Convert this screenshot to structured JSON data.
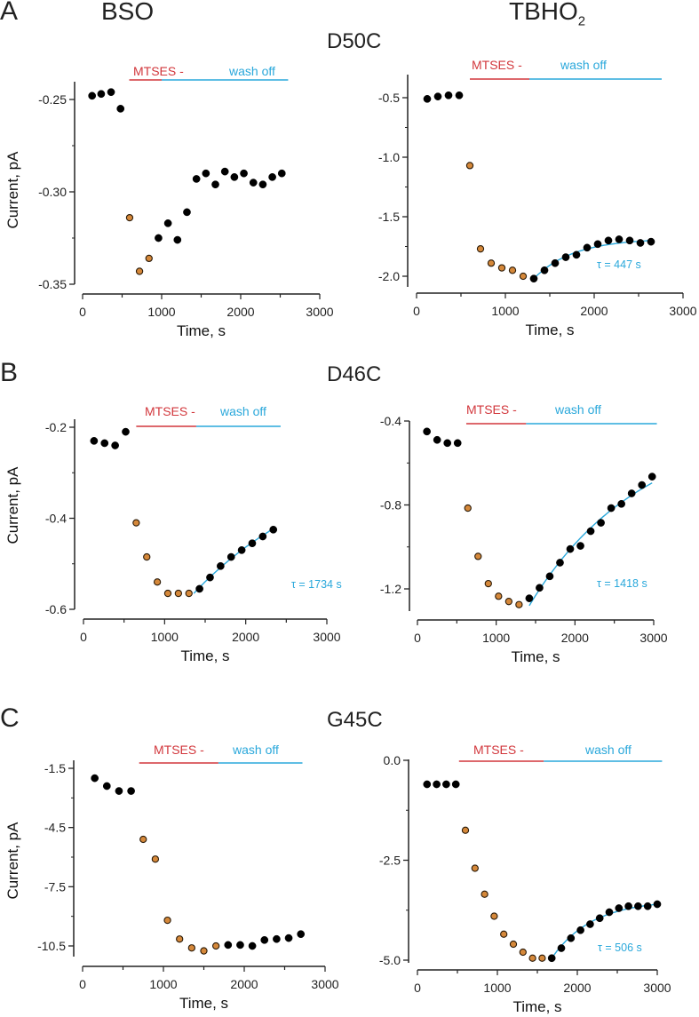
{
  "figure": {
    "column_titles": [
      {
        "main": "BSO",
        "sub": ""
      },
      {
        "main": "TBHO",
        "sub": "2"
      }
    ],
    "rows": [
      {
        "letter": "A",
        "title": "D50C"
      },
      {
        "letter": "B",
        "title": "D46C"
      },
      {
        "letter": "C",
        "title": "G45C"
      }
    ],
    "bar_labels": {
      "mtses": "MTSES -",
      "wash": "wash off"
    },
    "colors": {
      "black_point": "#000000",
      "orange_point": "#d5883a",
      "mtses_bar": "#d2373c",
      "wash_bar": "#2aa8db",
      "fit_line": "#2aa8db",
      "axis": "#222222"
    }
  },
  "chart_data": [
    {
      "type": "scatter",
      "row": "A",
      "column": "BSO",
      "construct": "D50C",
      "xlabel": "Time, s",
      "ylabel": "Current, pA",
      "xlim": [
        0,
        3000
      ],
      "ylim": [
        -0.35,
        -0.25
      ],
      "xticks": [
        0,
        1000,
        2000,
        3000
      ],
      "yticks": [
        -0.25,
        -0.3,
        -0.35
      ],
      "ytick_labels": [
        "-0.25",
        "-0.30",
        "-0.35"
      ],
      "mtses_interval": [
        590,
        1000
      ],
      "wash_interval": [
        1000,
        2600
      ],
      "series": [
        {
          "name": "baseline",
          "color": "black",
          "points": [
            [
              120,
              -0.248
            ],
            [
              235,
              -0.247
            ],
            [
              360,
              -0.246
            ],
            [
              480,
              -0.255
            ]
          ]
        },
        {
          "name": "MTSES",
          "color": "orange",
          "points": [
            [
              595,
              -0.314
            ],
            [
              720,
              -0.343
            ],
            [
              840,
              -0.336
            ]
          ]
        },
        {
          "name": "wash",
          "color": "black",
          "points": [
            [
              960,
              -0.325
            ],
            [
              1080,
              -0.317
            ],
            [
              1200,
              -0.326
            ],
            [
              1320,
              -0.311
            ],
            [
              1440,
              -0.293
            ],
            [
              1560,
              -0.29
            ],
            [
              1680,
              -0.296
            ],
            [
              1800,
              -0.289
            ],
            [
              1920,
              -0.292
            ],
            [
              2040,
              -0.29
            ],
            [
              2160,
              -0.295
            ],
            [
              2280,
              -0.296
            ],
            [
              2400,
              -0.292
            ],
            [
              2520,
              -0.29
            ]
          ]
        }
      ],
      "fit": null
    },
    {
      "type": "scatter",
      "row": "A",
      "column": "TBHO2",
      "construct": "D50C",
      "xlabel": "Time, s",
      "ylabel": "",
      "xlim": [
        0,
        3000
      ],
      "ylim": [
        -2.05,
        -0.35
      ],
      "xticks": [
        0,
        1000,
        2000,
        3000
      ],
      "yticks": [
        -0.5,
        -1.0,
        -1.5,
        -2.0
      ],
      "ytick_labels": [
        "-0.5",
        "-1.0",
        "-1.5",
        "-2.0"
      ],
      "mtses_interval": [
        600,
        1270
      ],
      "wash_interval": [
        1270,
        2760
      ],
      "series": [
        {
          "name": "baseline",
          "color": "black",
          "points": [
            [
              120,
              -0.51
            ],
            [
              240,
              -0.49
            ],
            [
              360,
              -0.48
            ],
            [
              480,
              -0.48
            ]
          ]
        },
        {
          "name": "MTSES",
          "color": "orange",
          "points": [
            [
              600,
              -1.07
            ],
            [
              720,
              -1.77
            ],
            [
              840,
              -1.89
            ],
            [
              960,
              -1.93
            ],
            [
              1080,
              -1.95
            ],
            [
              1200,
              -2.0
            ]
          ]
        },
        {
          "name": "wash",
          "color": "black",
          "points": [
            [
              1320,
              -2.02
            ],
            [
              1440,
              -1.95
            ],
            [
              1560,
              -1.89
            ],
            [
              1680,
              -1.84
            ],
            [
              1800,
              -1.82
            ],
            [
              1920,
              -1.76
            ],
            [
              2040,
              -1.73
            ],
            [
              2160,
              -1.7
            ],
            [
              2280,
              -1.69
            ],
            [
              2400,
              -1.7
            ],
            [
              2520,
              -1.72
            ],
            [
              2640,
              -1.71
            ]
          ]
        }
      ],
      "fit": {
        "tau_s": 447,
        "label": "τ = 447 s",
        "x_range": [
          1320,
          2640
        ],
        "y_start": -2.02,
        "y_end": -1.7
      }
    },
    {
      "type": "scatter",
      "row": "B",
      "column": "BSO",
      "construct": "D46C",
      "xlabel": "Time, s",
      "ylabel": "Current, pA",
      "xlim": [
        0,
        3000
      ],
      "ylim": [
        -0.6,
        -0.18
      ],
      "xticks": [
        0,
        1000,
        2000,
        3000
      ],
      "yticks": [
        -0.2,
        -0.4,
        -0.6
      ],
      "ytick_labels": [
        "-0.2",
        "-0.4",
        "-0.6"
      ],
      "mtses_interval": [
        650,
        1390
      ],
      "wash_interval": [
        1390,
        2430
      ],
      "series": [
        {
          "name": "baseline",
          "color": "black",
          "points": [
            [
              130,
              -0.23
            ],
            [
              260,
              -0.235
            ],
            [
              390,
              -0.24
            ],
            [
              520,
              -0.21
            ]
          ]
        },
        {
          "name": "MTSES",
          "color": "orange",
          "points": [
            [
              650,
              -0.41
            ],
            [
              780,
              -0.485
            ],
            [
              910,
              -0.54
            ],
            [
              1040,
              -0.565
            ],
            [
              1170,
              -0.565
            ],
            [
              1300,
              -0.565
            ]
          ]
        },
        {
          "name": "wash",
          "color": "black",
          "points": [
            [
              1430,
              -0.555
            ],
            [
              1560,
              -0.53
            ],
            [
              1690,
              -0.505
            ],
            [
              1820,
              -0.485
            ],
            [
              1950,
              -0.47
            ],
            [
              2080,
              -0.455
            ],
            [
              2210,
              -0.44
            ],
            [
              2340,
              -0.425
            ]
          ]
        }
      ],
      "fit": {
        "tau_s": 1734,
        "label": "τ = 1734 s",
        "x_range": [
          1360,
          2340
        ],
        "y_start": -0.565,
        "y_end": -0.423
      }
    },
    {
      "type": "scatter",
      "row": "B",
      "column": "TBHO2",
      "construct": "D46C",
      "xlabel": "Time, s",
      "ylabel": "",
      "xlim": [
        0,
        3000
      ],
      "ylim": [
        -1.3,
        -0.4
      ],
      "xticks": [
        0,
        1000,
        2000,
        3000
      ],
      "yticks": [
        -0.4,
        -0.8,
        -1.2
      ],
      "ytick_labels": [
        "-0.4",
        "-0.8",
        "-1.2"
      ],
      "mtses_interval": [
        620,
        1380
      ],
      "wash_interval": [
        1380,
        3040
      ],
      "series": [
        {
          "name": "baseline",
          "color": "black",
          "points": [
            [
              120,
              -0.45
            ],
            [
              250,
              -0.49
            ],
            [
              380,
              -0.505
            ],
            [
              510,
              -0.505
            ]
          ]
        },
        {
          "name": "MTSES",
          "color": "orange",
          "points": [
            [
              640,
              -0.815
            ],
            [
              770,
              -1.045
            ],
            [
              900,
              -1.175
            ],
            [
              1030,
              -1.235
            ],
            [
              1160,
              -1.26
            ],
            [
              1290,
              -1.275
            ]
          ]
        },
        {
          "name": "wash",
          "color": "black",
          "points": [
            [
              1420,
              -1.245
            ],
            [
              1550,
              -1.195
            ],
            [
              1680,
              -1.14
            ],
            [
              1810,
              -1.075
            ],
            [
              1940,
              -1.01
            ],
            [
              2070,
              -0.995
            ],
            [
              2200,
              -0.925
            ],
            [
              2330,
              -0.885
            ],
            [
              2460,
              -0.815
            ],
            [
              2590,
              -0.795
            ],
            [
              2720,
              -0.745
            ],
            [
              2850,
              -0.705
            ],
            [
              2980,
              -0.665
            ]
          ]
        }
      ],
      "fit": {
        "tau_s": 1418,
        "label": "τ = 1418 s",
        "x_range": [
          1420,
          2980
        ],
        "y_start": -1.28,
        "y_end": -0.695
      }
    },
    {
      "type": "scatter",
      "row": "C",
      "column": "BSO",
      "construct": "G45C",
      "xlabel": "Time, s",
      "ylabel": "Current, pA",
      "xlim": [
        0,
        3000
      ],
      "ylim": [
        -11.0,
        -1.0
      ],
      "xticks": [
        0,
        1000,
        2000,
        3000
      ],
      "yticks": [
        -1.5,
        -4.5,
        -7.5,
        -10.5
      ],
      "ytick_labels": [
        "-1.5",
        "-4.5",
        "-7.5",
        "-10.5"
      ],
      "mtses_interval": [
        700,
        1680
      ],
      "wash_interval": [
        1680,
        2720
      ],
      "series": [
        {
          "name": "baseline",
          "color": "black",
          "points": [
            [
              150,
              -2.0
            ],
            [
              300,
              -2.4
            ],
            [
              450,
              -2.65
            ],
            [
              600,
              -2.65
            ]
          ]
        },
        {
          "name": "MTSES",
          "color": "orange",
          "points": [
            [
              750,
              -5.1
            ],
            [
              900,
              -6.1
            ],
            [
              1050,
              -9.2
            ],
            [
              1200,
              -10.15
            ],
            [
              1350,
              -10.6
            ],
            [
              1500,
              -10.75
            ],
            [
              1650,
              -10.5
            ]
          ]
        },
        {
          "name": "wash",
          "color": "black",
          "points": [
            [
              1800,
              -10.45
            ],
            [
              1950,
              -10.45
            ],
            [
              2100,
              -10.5
            ],
            [
              2250,
              -10.2
            ],
            [
              2400,
              -10.15
            ],
            [
              2550,
              -10.1
            ],
            [
              2700,
              -9.9
            ]
          ]
        }
      ],
      "fit": null
    },
    {
      "type": "scatter",
      "row": "C",
      "column": "TBHO2",
      "construct": "G45C",
      "xlabel": "Time, s",
      "ylabel": "",
      "xlim": [
        0,
        3000
      ],
      "ylim": [
        -5.2,
        0.0
      ],
      "xticks": [
        0,
        1000,
        2000,
        3000
      ],
      "yticks": [
        0.0,
        -2.5,
        -5.0
      ],
      "ytick_labels": [
        "0.0",
        "-2.5",
        "-5.0"
      ],
      "mtses_interval": [
        520,
        1580
      ],
      "wash_interval": [
        1580,
        3060
      ],
      "series": [
        {
          "name": "baseline",
          "color": "black",
          "points": [
            [
              120,
              -0.6
            ],
            [
              240,
              -0.6
            ],
            [
              360,
              -0.6
            ],
            [
              480,
              -0.6
            ]
          ]
        },
        {
          "name": "MTSES",
          "color": "orange",
          "points": [
            [
              600,
              -1.75
            ],
            [
              720,
              -2.7
            ],
            [
              840,
              -3.35
            ],
            [
              960,
              -3.9
            ],
            [
              1080,
              -4.35
            ],
            [
              1200,
              -4.6
            ],
            [
              1320,
              -4.8
            ],
            [
              1440,
              -4.95
            ],
            [
              1560,
              -4.95
            ]
          ]
        },
        {
          "name": "wash",
          "color": "black",
          "points": [
            [
              1680,
              -4.95
            ],
            [
              1800,
              -4.7
            ],
            [
              1920,
              -4.45
            ],
            [
              2040,
              -4.25
            ],
            [
              2160,
              -4.1
            ],
            [
              2280,
              -3.95
            ],
            [
              2400,
              -3.8
            ],
            [
              2520,
              -3.7
            ],
            [
              2640,
              -3.65
            ],
            [
              2760,
              -3.65
            ],
            [
              2880,
              -3.65
            ],
            [
              3000,
              -3.6
            ]
          ]
        }
      ],
      "fit": {
        "tau_s": 506,
        "label": "τ = 506 s",
        "x_range": [
          1680,
          3000
        ],
        "y_start": -4.95,
        "y_end": -3.6
      }
    }
  ]
}
